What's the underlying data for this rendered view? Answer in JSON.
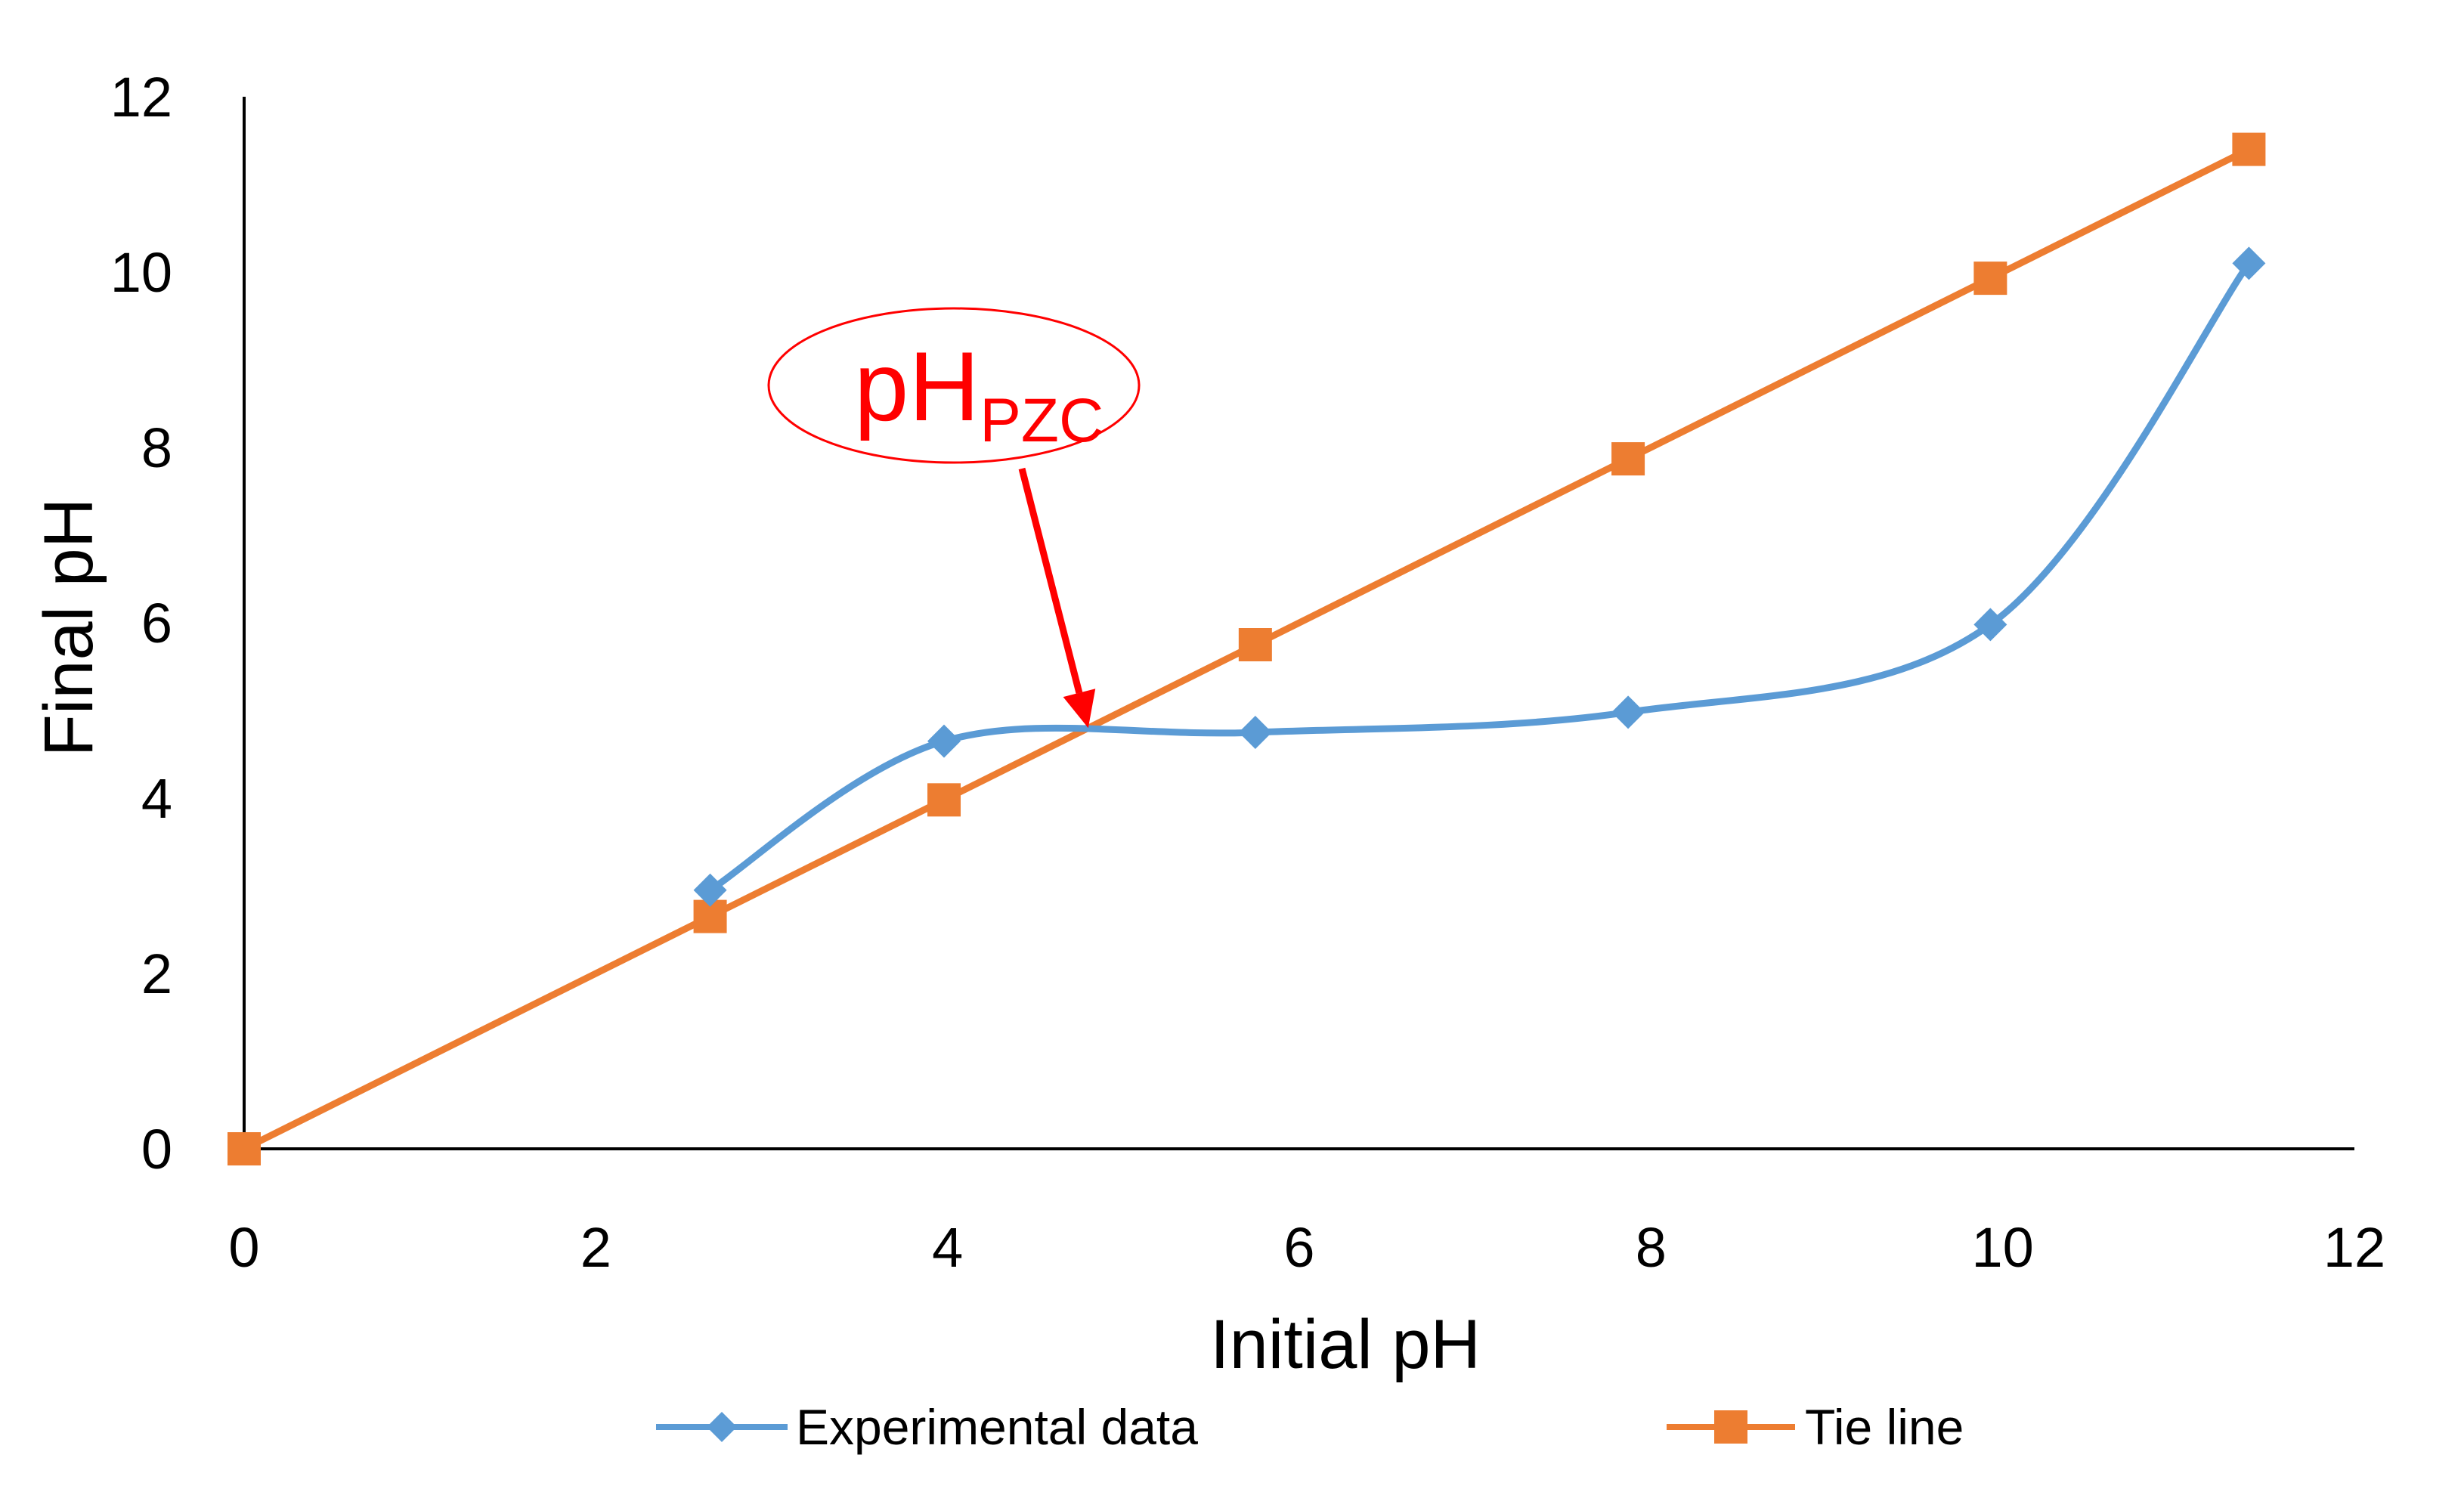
{
  "colors": {
    "experimental": "#5b9bd5",
    "tie": "#ed7d31",
    "annotation": "#ff0000",
    "axis": "#000000"
  },
  "chart_data": {
    "type": "line",
    "title": "",
    "xlabel": "Initial pH",
    "ylabel": "Final pH",
    "xlim": [
      0,
      12
    ],
    "ylim": [
      0,
      12
    ],
    "xticks": [
      "0",
      "2",
      "4",
      "6",
      "8",
      "10",
      "12"
    ],
    "yticks": [
      "0",
      "2",
      "4",
      "6",
      "8",
      "10",
      "12"
    ],
    "grid": false,
    "legend_position": "bottom",
    "series": [
      {
        "name": "Experimental data",
        "marker": "diamond",
        "smooth": true,
        "x": [
          2.65,
          3.98,
          5.75,
          7.87,
          9.93,
          11.4
        ],
        "y": [
          2.95,
          4.65,
          4.75,
          4.98,
          5.98,
          10.1
        ]
      },
      {
        "name": "Tie line",
        "marker": "square",
        "smooth": false,
        "x": [
          0,
          2.65,
          3.98,
          5.75,
          7.87,
          9.93,
          11.4
        ],
        "y": [
          0,
          2.65,
          3.98,
          5.75,
          7.87,
          9.93,
          11.4
        ]
      }
    ],
    "annotation": {
      "text_main": "pH",
      "text_sub": "PZC",
      "target": {
        "x": 4.8,
        "y": 4.8
      }
    }
  }
}
